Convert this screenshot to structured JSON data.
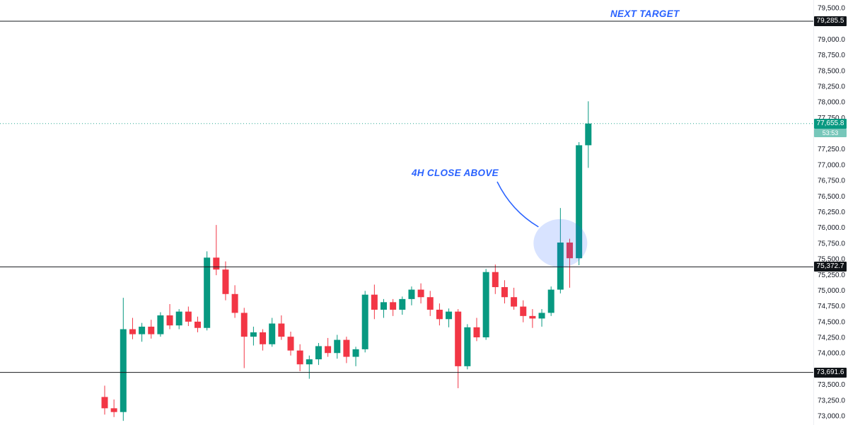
{
  "chart_data": {
    "type": "candlestick",
    "description": "4H candlestick price chart with breakout, horizontal levels and annotations",
    "colors": {
      "background": "#ffffff",
      "up": "#089981",
      "down": "#f23645",
      "level_line": "#16181d",
      "badge_bg": "#101418",
      "annotation": "#2962ff",
      "current_line": "#089981",
      "countdown_bg": "rgba(8,153,129,0.55)",
      "axis_text": "#131722",
      "highlight": "rgba(41,98,255,0.18)"
    },
    "price_axis": {
      "min": 73000,
      "max": 79500,
      "tick_step": 250,
      "ticks": [
        {
          "label": "79,500.0",
          "value": 79500
        },
        {
          "label": "79,000.0",
          "value": 79000
        },
        {
          "label": "78,750.0",
          "value": 78750
        },
        {
          "label": "78,500.0",
          "value": 78500
        },
        {
          "label": "78,250.0",
          "value": 78250
        },
        {
          "label": "78,000.0",
          "value": 78000
        },
        {
          "label": "77,750.0",
          "value": 77750
        },
        {
          "label": "77,250.0",
          "value": 77250
        },
        {
          "label": "77,000.0",
          "value": 77000
        },
        {
          "label": "76,750.0",
          "value": 76750
        },
        {
          "label": "76,500.0",
          "value": 76500
        },
        {
          "label": "76,250.0",
          "value": 76250
        },
        {
          "label": "76,000.0",
          "value": 76000
        },
        {
          "label": "75,750.0",
          "value": 75750
        },
        {
          "label": "75,500.0",
          "value": 75500
        },
        {
          "label": "75,250.0",
          "value": 75250
        },
        {
          "label": "75,000.0",
          "value": 75000
        },
        {
          "label": "74,750.0",
          "value": 74750
        },
        {
          "label": "74,500.0",
          "value": 74500
        },
        {
          "label": "74,250.0",
          "value": 74250
        },
        {
          "label": "74,000.0",
          "value": 74000
        },
        {
          "label": "73,500.0",
          "value": 73500
        },
        {
          "label": "73,250.0",
          "value": 73250
        },
        {
          "label": "73,000.0",
          "value": 73000
        }
      ]
    },
    "lines": [
      {
        "label": "79,285.5",
        "value": 79285.5,
        "role": "next-target-level"
      },
      {
        "label": "75,372.7",
        "value": 75372.7,
        "role": "breakout-level"
      },
      {
        "label": "73,691.6",
        "value": 73691.6,
        "role": "support-level"
      }
    ],
    "current_price": {
      "label": "77,655.8",
      "value": 77655.8,
      "countdown": "53:53"
    },
    "annotations": {
      "next_target": {
        "text": "NEXT TARGET"
      },
      "close_above": {
        "text": "4H CLOSE ABOVE",
        "target_price": 75750,
        "target_index": 49
      }
    },
    "candles": [
      [
        73300,
        73480,
        73020,
        73120
      ],
      [
        73120,
        73260,
        72980,
        73060
      ],
      [
        73060,
        74880,
        72920,
        74380
      ],
      [
        74380,
        74560,
        74220,
        74300
      ],
      [
        74300,
        74480,
        74180,
        74420
      ],
      [
        74420,
        74530,
        74230,
        74300
      ],
      [
        74300,
        74650,
        74260,
        74600
      ],
      [
        74600,
        74780,
        74380,
        74440
      ],
      [
        74440,
        74700,
        74380,
        74660
      ],
      [
        74660,
        74740,
        74430,
        74500
      ],
      [
        74500,
        74580,
        74330,
        74400
      ],
      [
        74400,
        75620,
        74360,
        75520
      ],
      [
        75520,
        76040,
        75240,
        75330
      ],
      [
        75330,
        75460,
        74840,
        74940
      ],
      [
        74940,
        75080,
        74560,
        74640
      ],
      [
        74640,
        74720,
        73760,
        74260
      ],
      [
        74260,
        74420,
        74120,
        74330
      ],
      [
        74330,
        74380,
        74040,
        74140
      ],
      [
        74140,
        74560,
        74100,
        74470
      ],
      [
        74470,
        74600,
        74210,
        74260
      ],
      [
        74260,
        74340,
        73960,
        74040
      ],
      [
        74040,
        74140,
        73710,
        73820
      ],
      [
        73820,
        73960,
        73590,
        73900
      ],
      [
        73900,
        74160,
        73810,
        74110
      ],
      [
        74110,
        74240,
        73940,
        74000
      ],
      [
        74000,
        74290,
        73910,
        74210
      ],
      [
        74210,
        74260,
        73840,
        73940
      ],
      [
        73940,
        74100,
        73790,
        74060
      ],
      [
        74060,
        74990,
        74010,
        74930
      ],
      [
        74930,
        75090,
        74540,
        74690
      ],
      [
        74690,
        74860,
        74560,
        74810
      ],
      [
        74810,
        74860,
        74590,
        74690
      ],
      [
        74690,
        74900,
        74610,
        74860
      ],
      [
        74860,
        75060,
        74760,
        75010
      ],
      [
        75010,
        75110,
        74790,
        74890
      ],
      [
        74890,
        74990,
        74590,
        74690
      ],
      [
        74690,
        74790,
        74440,
        74540
      ],
      [
        74540,
        74710,
        74410,
        74660
      ],
      [
        74660,
        74700,
        73440,
        73790
      ],
      [
        73790,
        74460,
        73740,
        74410
      ],
      [
        74410,
        74560,
        74190,
        74250
      ],
      [
        74250,
        75340,
        74210,
        75290
      ],
      [
        75290,
        75410,
        74940,
        75050
      ],
      [
        75050,
        75160,
        74790,
        74890
      ],
      [
        74890,
        75040,
        74690,
        74740
      ],
      [
        74740,
        74840,
        74490,
        74590
      ],
      [
        74590,
        74700,
        74400,
        74550
      ],
      [
        74550,
        74700,
        74420,
        74640
      ],
      [
        74640,
        75060,
        74590,
        75010
      ],
      [
        75010,
        76310,
        74950,
        75760
      ],
      [
        75760,
        75820,
        75040,
        75510
      ],
      [
        75510,
        77360,
        75400,
        77310
      ],
      [
        77310,
        78010,
        76950,
        77655.8
      ]
    ]
  }
}
